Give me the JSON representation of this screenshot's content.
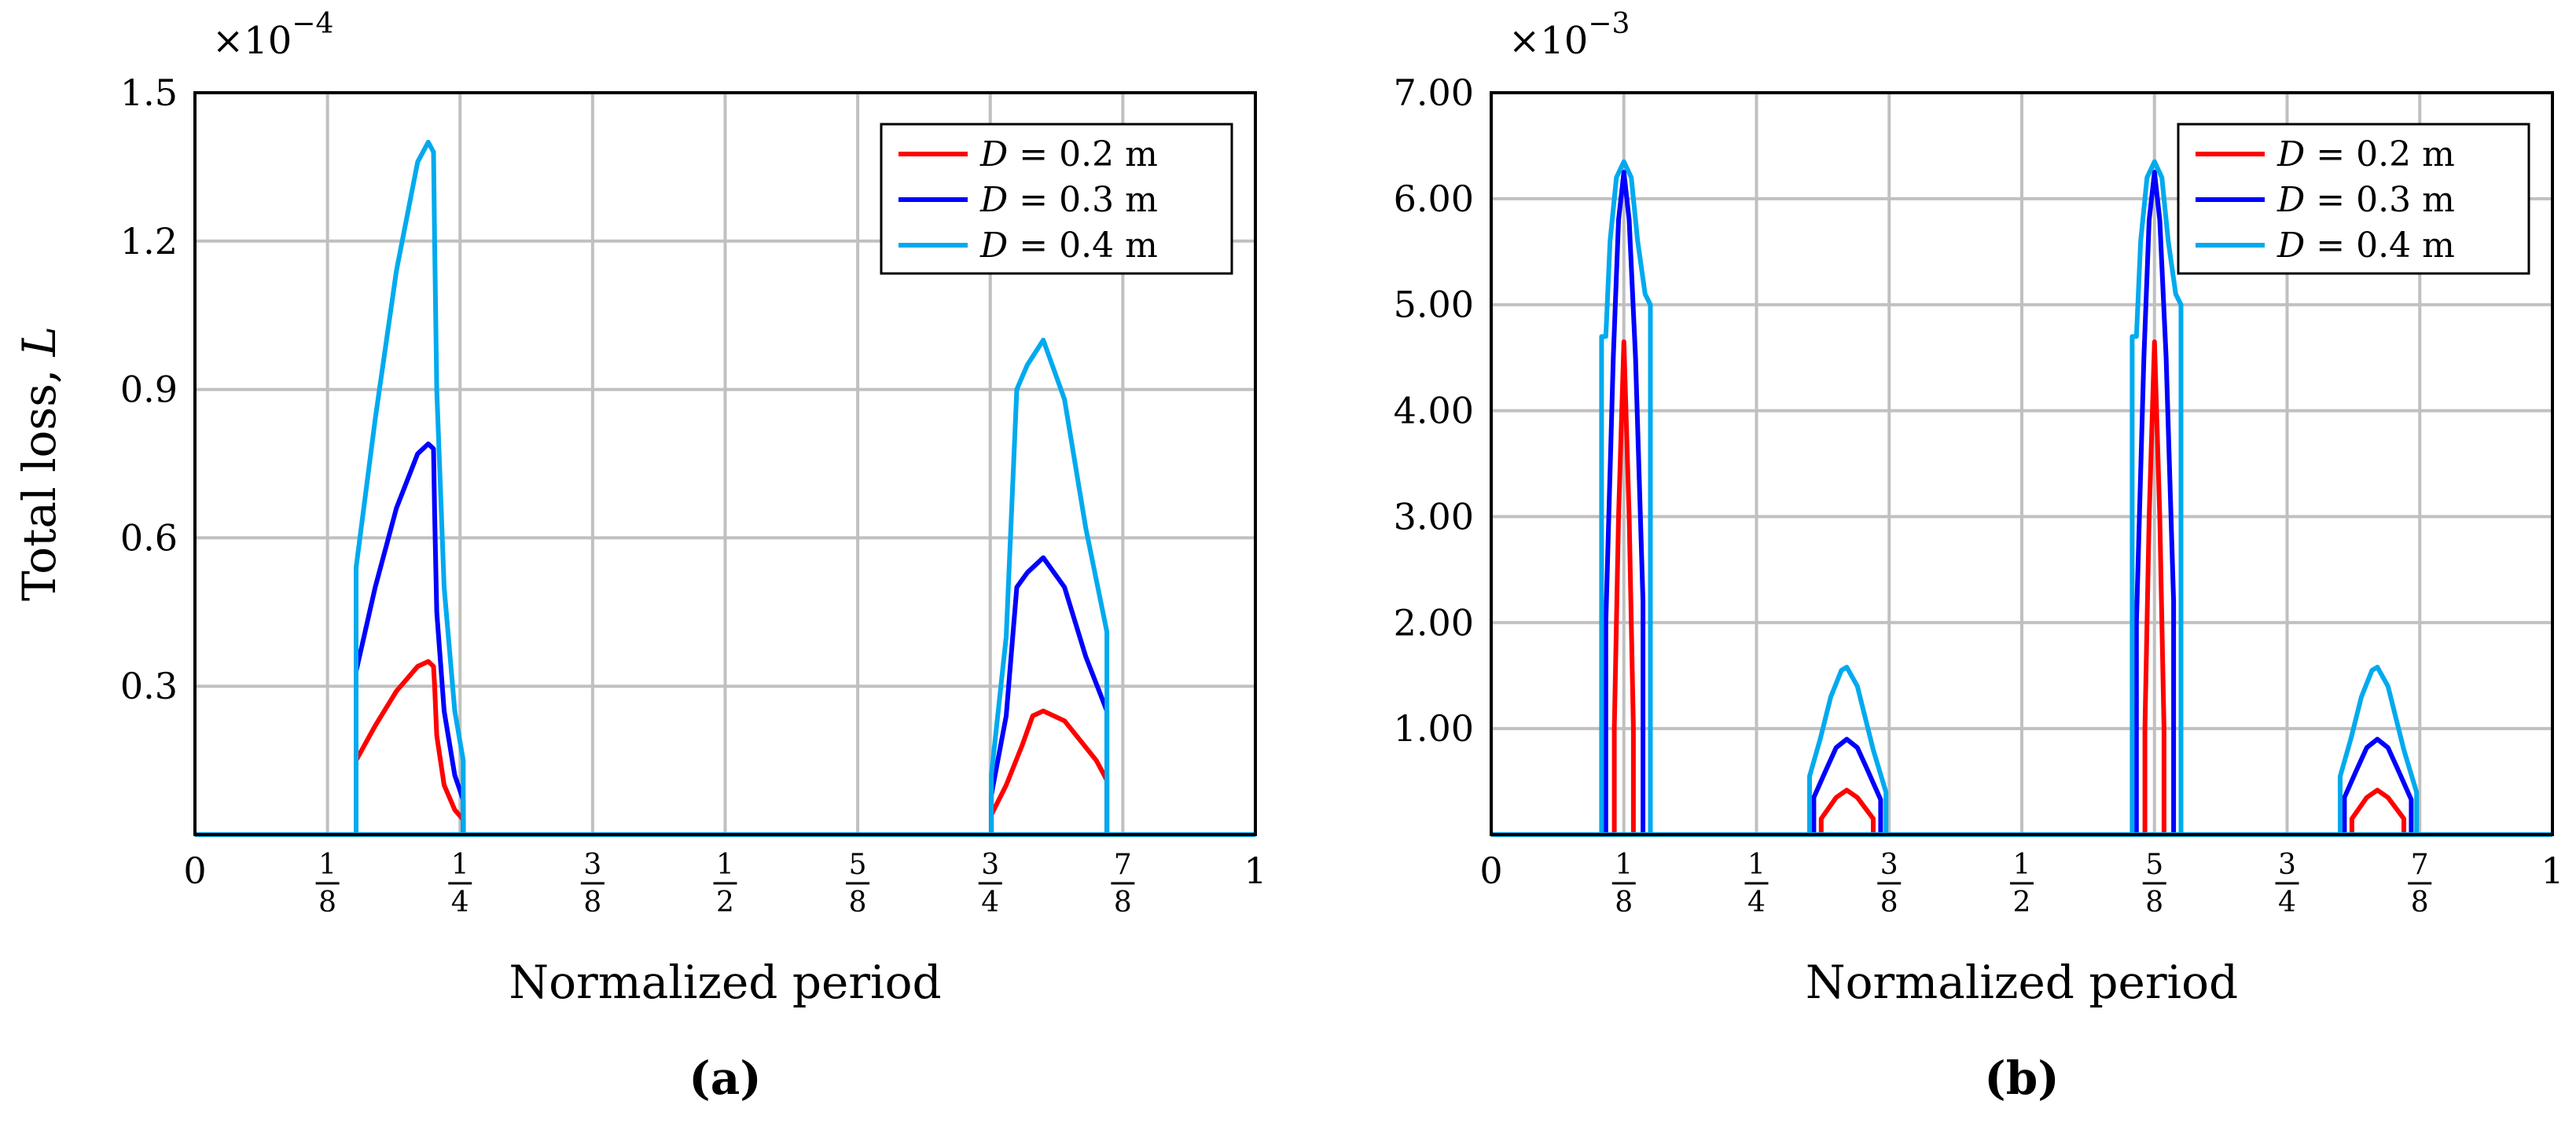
{
  "chart_data": [
    {
      "id": "a",
      "type": "line",
      "caption": "(a)",
      "xlabel": "Normalized period",
      "ylabel": "Total loss, L",
      "ylabel_main": "Total loss,",
      "ylabel_symbol": "L",
      "multiplier": {
        "base": "×10",
        "exponent": "−4"
      },
      "xlim": [
        0,
        1
      ],
      "ylim": [
        0,
        1.5
      ],
      "xticks": [
        {
          "value": 0,
          "label": "0"
        },
        {
          "value": 0.125,
          "num": "1",
          "den": "8"
        },
        {
          "value": 0.25,
          "num": "1",
          "den": "4"
        },
        {
          "value": 0.375,
          "num": "3",
          "den": "8"
        },
        {
          "value": 0.5,
          "num": "1",
          "den": "2"
        },
        {
          "value": 0.625,
          "num": "5",
          "den": "8"
        },
        {
          "value": 0.75,
          "num": "3",
          "den": "4"
        },
        {
          "value": 0.875,
          "num": "7",
          "den": "8"
        },
        {
          "value": 1,
          "label": "1"
        }
      ],
      "yticks": [
        {
          "value": 0.3,
          "label": "0.3"
        },
        {
          "value": 0.6,
          "label": "0.6"
        },
        {
          "value": 0.9,
          "label": "0.9"
        },
        {
          "value": 1.2,
          "label": "1.2"
        },
        {
          "value": 1.5,
          "label": "1.5"
        }
      ],
      "legend": {
        "position": "top-right"
      },
      "series": [
        {
          "name": "D = 0.2 m",
          "var": "D",
          "text": " = 0.2 m",
          "color": "#ff0000",
          "x": [
            0,
            0.152,
            0.152,
            0.17,
            0.19,
            0.21,
            0.22,
            0.225,
            0.226,
            0.228,
            0.235,
            0.245,
            0.253,
            0.253,
            1
          ],
          "y": [
            0,
            0,
            0.15,
            0.22,
            0.29,
            0.34,
            0.35,
            0.34,
            0.3,
            0.2,
            0.1,
            0.05,
            0.03,
            0,
            0
          ],
          "x2": [
            0,
            0.751,
            0.751,
            0.765,
            0.78,
            0.79,
            0.8,
            0.82,
            0.85,
            0.86,
            0.86,
            1
          ],
          "y2": [
            0,
            0,
            0.04,
            0.1,
            0.18,
            0.24,
            0.25,
            0.23,
            0.15,
            0.11,
            0,
            0
          ]
        },
        {
          "name": "D = 0.3 m",
          "var": "D",
          "text": " = 0.3 m",
          "color": "#0000ff",
          "x": [
            0,
            0.152,
            0.152,
            0.17,
            0.19,
            0.21,
            0.22,
            0.225,
            0.226,
            0.228,
            0.235,
            0.245,
            0.253,
            0.253,
            1
          ],
          "y": [
            0,
            0,
            0.33,
            0.5,
            0.66,
            0.77,
            0.79,
            0.78,
            0.65,
            0.45,
            0.25,
            0.12,
            0.07,
            0,
            0
          ],
          "x2": [
            0,
            0.751,
            0.751,
            0.765,
            0.775,
            0.785,
            0.8,
            0.82,
            0.84,
            0.86,
            0.86,
            1
          ],
          "y2": [
            0,
            0,
            0.08,
            0.24,
            0.5,
            0.53,
            0.56,
            0.5,
            0.36,
            0.25,
            0,
            0
          ]
        },
        {
          "name": "D = 0.4 m",
          "var": "D",
          "text": " = 0.4 m",
          "color": "#00aaee",
          "x": [
            0,
            0.152,
            0.152,
            0.17,
            0.19,
            0.21,
            0.22,
            0.225,
            0.226,
            0.228,
            0.235,
            0.245,
            0.253,
            0.253,
            1
          ],
          "y": [
            0,
            0,
            0.54,
            0.84,
            1.14,
            1.36,
            1.4,
            1.38,
            1.2,
            0.9,
            0.5,
            0.25,
            0.15,
            0,
            0
          ],
          "x2": [
            0,
            0.751,
            0.751,
            0.765,
            0.775,
            0.785,
            0.8,
            0.82,
            0.84,
            0.86,
            0.86,
            1
          ],
          "y2": [
            0,
            0,
            0.12,
            0.4,
            0.9,
            0.95,
            1.0,
            0.88,
            0.62,
            0.41,
            0,
            0
          ]
        }
      ]
    },
    {
      "id": "b",
      "type": "line",
      "caption": "(b)",
      "xlabel": "Normalized period",
      "ylabel": "",
      "multiplier": {
        "base": "×10",
        "exponent": "−3"
      },
      "xlim": [
        0,
        1
      ],
      "ylim": [
        0,
        7
      ],
      "xticks": [
        {
          "value": 0,
          "label": "0"
        },
        {
          "value": 0.125,
          "num": "1",
          "den": "8"
        },
        {
          "value": 0.25,
          "num": "1",
          "den": "4"
        },
        {
          "value": 0.375,
          "num": "3",
          "den": "8"
        },
        {
          "value": 0.5,
          "num": "1",
          "den": "2"
        },
        {
          "value": 0.625,
          "num": "5",
          "den": "8"
        },
        {
          "value": 0.75,
          "num": "3",
          "den": "4"
        },
        {
          "value": 0.875,
          "num": "7",
          "den": "8"
        },
        {
          "value": 1,
          "label": "1"
        }
      ],
      "yticks": [
        {
          "value": 1,
          "label": "1.00"
        },
        {
          "value": 2,
          "label": "2.00"
        },
        {
          "value": 3,
          "label": "3.00"
        },
        {
          "value": 4,
          "label": "4.00"
        },
        {
          "value": 5,
          "label": "5.00"
        },
        {
          "value": 6,
          "label": "6.00"
        },
        {
          "value": 7,
          "label": "7.00"
        }
      ],
      "legend": {
        "position": "top-right"
      },
      "series": [
        {
          "name": "D = 0.2 m",
          "var": "D",
          "text": " = 0.2 m",
          "color": "#ff0000",
          "peaks": [
            {
              "x": [
                0.116,
                0.116,
                0.12,
                0.125,
                0.13,
                0.134,
                0.134
              ],
              "y": [
                0,
                1.0,
                3.0,
                4.65,
                3.0,
                1.0,
                0
              ]
            },
            {
              "x": [
                0.311,
                0.311,
                0.325,
                0.335,
                0.345,
                0.36,
                0.36
              ],
              "y": [
                0,
                0.15,
                0.35,
                0.42,
                0.35,
                0.15,
                0
              ]
            },
            {
              "x": [
                0.616,
                0.616,
                0.62,
                0.625,
                0.63,
                0.634,
                0.634
              ],
              "y": [
                0,
                1.0,
                3.0,
                4.65,
                3.0,
                1.0,
                0
              ]
            },
            {
              "x": [
                0.811,
                0.811,
                0.825,
                0.835,
                0.845,
                0.86,
                0.86
              ],
              "y": [
                0,
                0.15,
                0.35,
                0.42,
                0.35,
                0.15,
                0
              ]
            }
          ]
        },
        {
          "name": "D = 0.3 m",
          "var": "D",
          "text": " = 0.3 m",
          "color": "#0000ff",
          "peaks": [
            {
              "x": [
                0.108,
                0.108,
                0.115,
                0.12,
                0.125,
                0.13,
                0.136,
                0.143,
                0.143
              ],
              "y": [
                0,
                2.0,
                4.5,
                5.8,
                6.25,
                5.8,
                4.5,
                2.2,
                0
              ]
            },
            {
              "x": [
                0.304,
                0.304,
                0.315,
                0.325,
                0.335,
                0.345,
                0.355,
                0.367,
                0.367
              ],
              "y": [
                0,
                0.35,
                0.6,
                0.82,
                0.9,
                0.82,
                0.6,
                0.33,
                0
              ]
            },
            {
              "x": [
                0.608,
                0.608,
                0.615,
                0.62,
                0.625,
                0.63,
                0.636,
                0.643,
                0.643
              ],
              "y": [
                0,
                2.0,
                4.5,
                5.8,
                6.25,
                5.8,
                4.5,
                2.2,
                0
              ]
            },
            {
              "x": [
                0.804,
                0.804,
                0.815,
                0.825,
                0.835,
                0.845,
                0.855,
                0.867,
                0.867
              ],
              "y": [
                0,
                0.35,
                0.6,
                0.82,
                0.9,
                0.82,
                0.6,
                0.33,
                0
              ]
            }
          ]
        },
        {
          "name": "D = 0.4 m",
          "var": "D",
          "text": " = 0.4 m",
          "color": "#00aaee",
          "peaks": [
            {
              "x": [
                0.104,
                0.104,
                0.108,
                0.112,
                0.118,
                0.125,
                0.132,
                0.138,
                0.145,
                0.15,
                0.15
              ],
              "y": [
                0,
                4.7,
                4.7,
                5.6,
                6.2,
                6.35,
                6.2,
                5.6,
                5.1,
                5.0,
                0
              ]
            },
            {
              "x": [
                0.3,
                0.3,
                0.31,
                0.32,
                0.33,
                0.335,
                0.345,
                0.36,
                0.372,
                0.372
              ],
              "y": [
                0,
                0.55,
                0.9,
                1.3,
                1.55,
                1.58,
                1.4,
                0.8,
                0.4,
                0
              ]
            },
            {
              "x": [
                0.604,
                0.604,
                0.608,
                0.612,
                0.618,
                0.625,
                0.632,
                0.638,
                0.645,
                0.65,
                0.65
              ],
              "y": [
                0,
                4.7,
                4.7,
                5.6,
                6.2,
                6.35,
                6.2,
                5.6,
                5.1,
                5.0,
                0
              ]
            },
            {
              "x": [
                0.8,
                0.8,
                0.81,
                0.82,
                0.83,
                0.835,
                0.845,
                0.86,
                0.872,
                0.872
              ],
              "y": [
                0,
                0.55,
                0.9,
                1.3,
                1.55,
                1.58,
                1.4,
                0.8,
                0.4,
                0
              ]
            }
          ]
        }
      ]
    }
  ]
}
